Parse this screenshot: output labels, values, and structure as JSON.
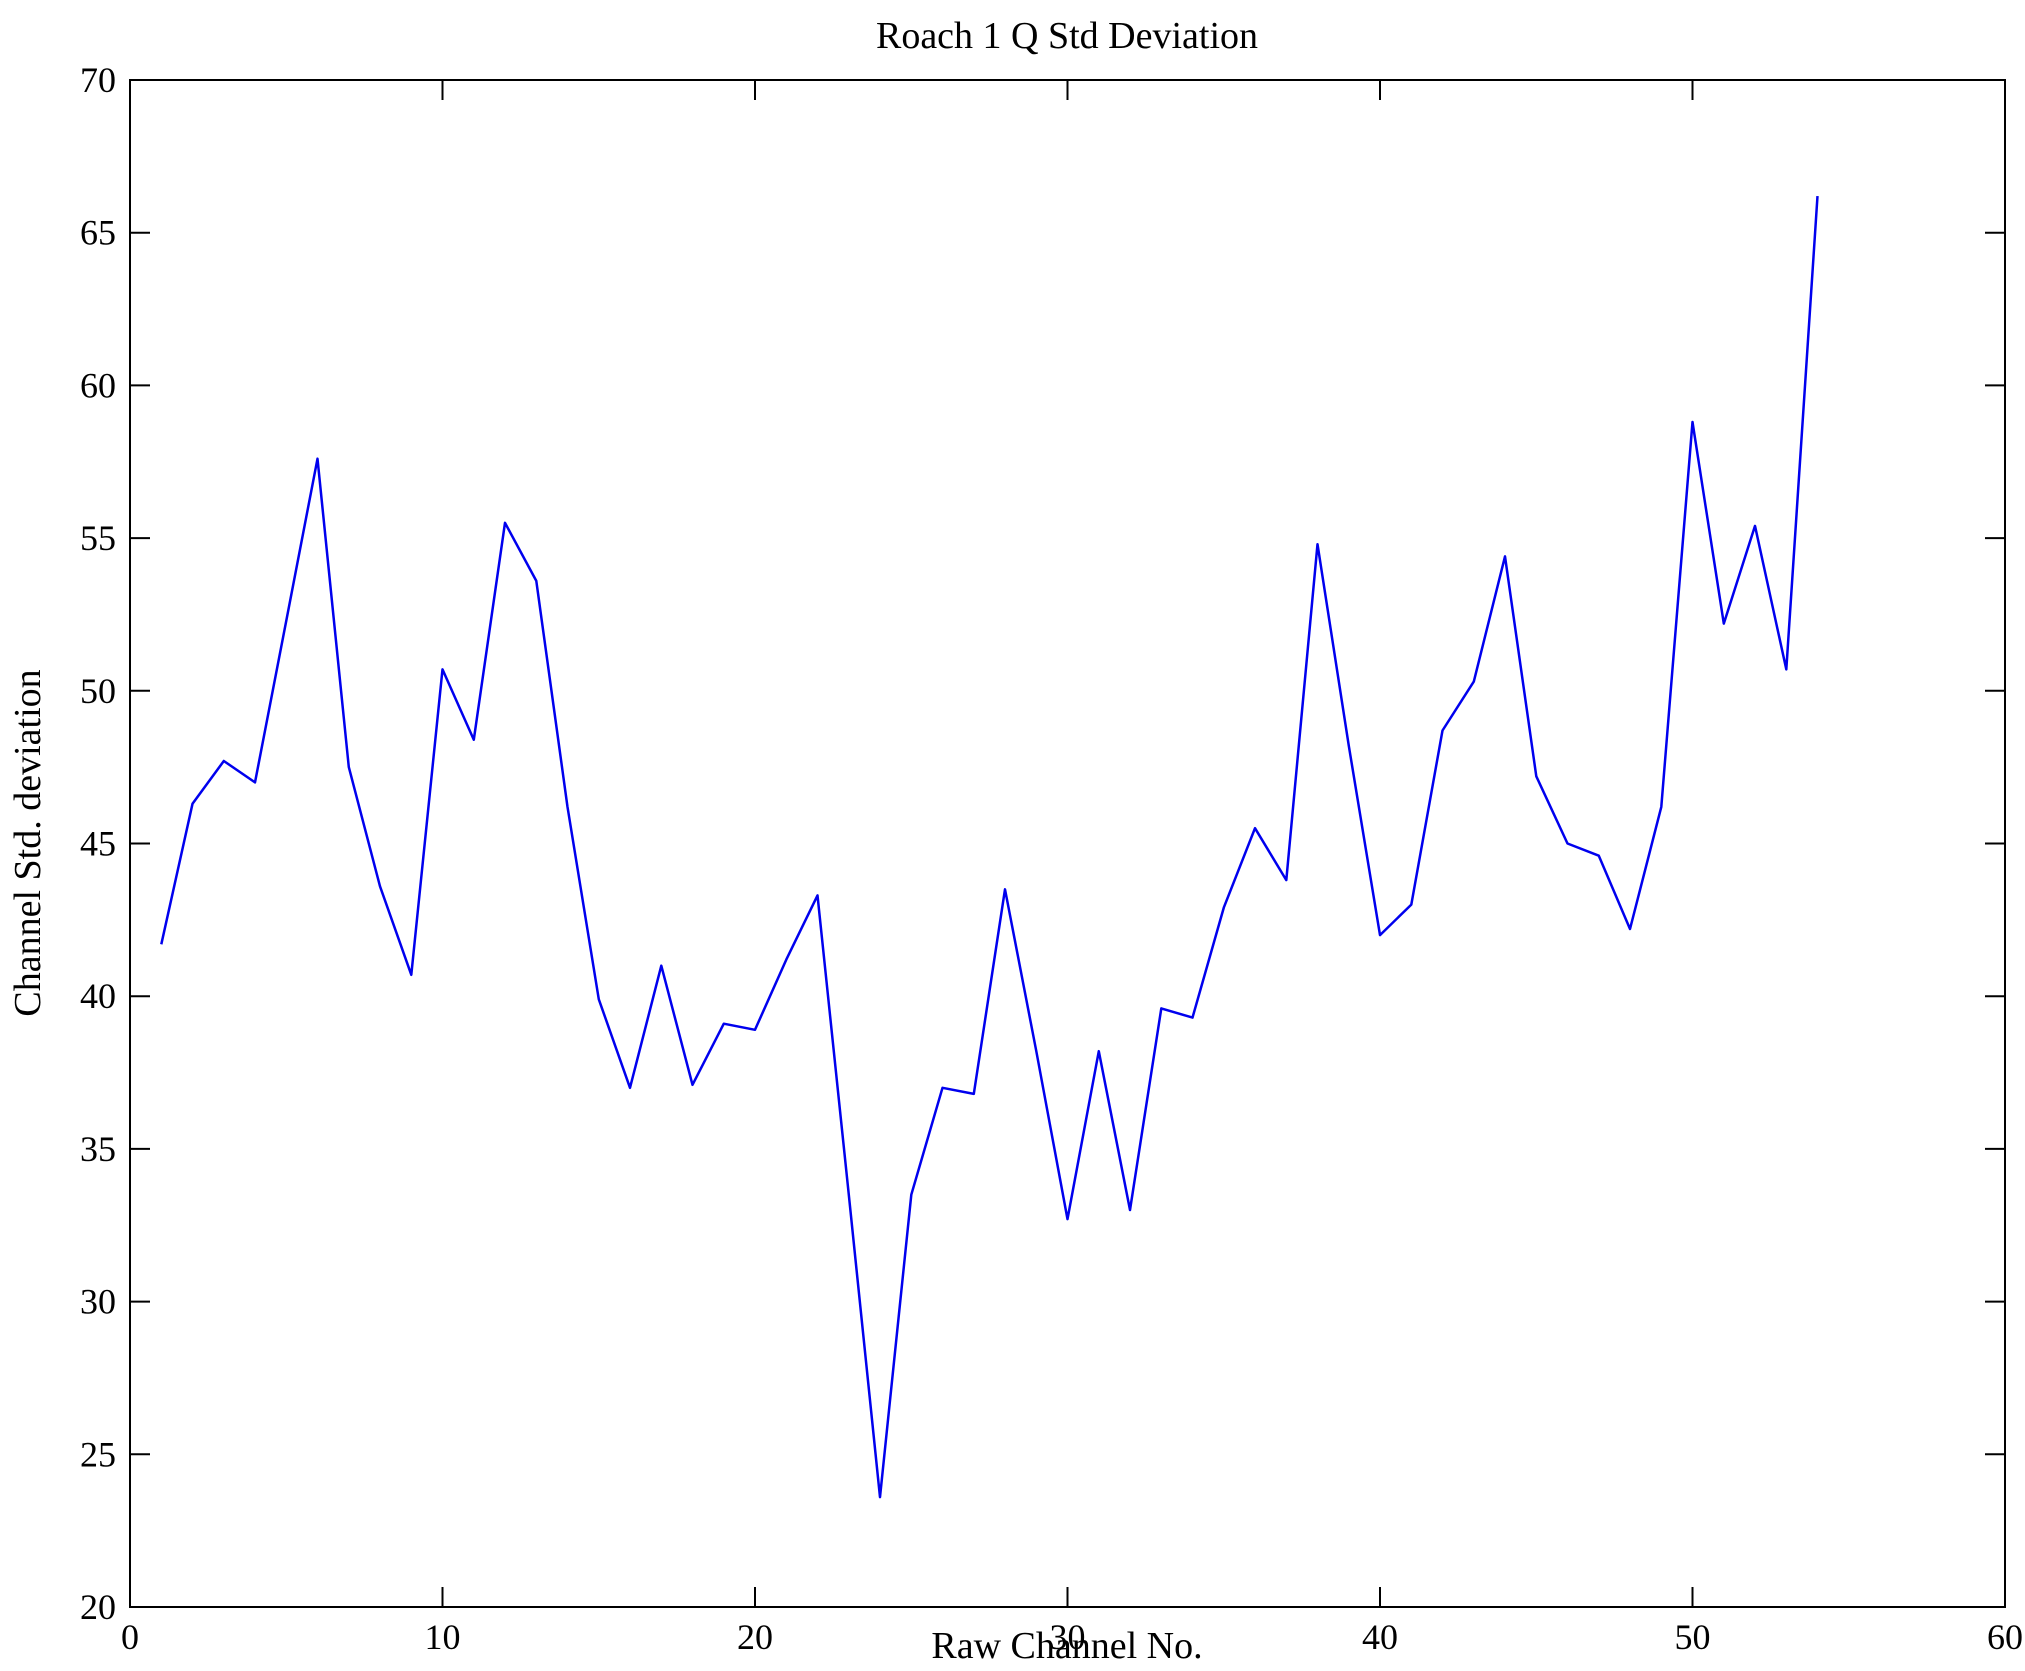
{
  "chart_data": {
    "type": "line",
    "title": "Roach 1 Q Std Deviation",
    "xlabel": "Raw Channel No.",
    "ylabel": "Channel Std. deviation",
    "xlim": [
      0,
      60
    ],
    "ylim": [
      20,
      70
    ],
    "xticks": [
      0,
      10,
      20,
      30,
      40,
      50,
      60
    ],
    "yticks": [
      20,
      25,
      30,
      35,
      40,
      45,
      50,
      55,
      60,
      65,
      70
    ],
    "grid": false,
    "legend": null,
    "line_color": "#0000ee",
    "axis_color": "#000000",
    "series": [
      {
        "name": "channel-std-deviation",
        "x": [
          1,
          2,
          3,
          4,
          5,
          6,
          7,
          8,
          9,
          10,
          11,
          12,
          13,
          14,
          15,
          16,
          17,
          18,
          19,
          20,
          21,
          22,
          23,
          24,
          25,
          26,
          27,
          28,
          29,
          30,
          31,
          32,
          33,
          34,
          35,
          36,
          37,
          38,
          39,
          40,
          41,
          42,
          43,
          44,
          45,
          46,
          47,
          48,
          49,
          50,
          51,
          52,
          53,
          54
        ],
        "y": [
          41.7,
          46.3,
          47.7,
          47.0,
          52.3,
          57.6,
          47.5,
          43.6,
          40.7,
          50.7,
          48.4,
          55.5,
          53.6,
          46.2,
          39.9,
          37.0,
          41.0,
          37.1,
          39.1,
          38.9,
          41.2,
          43.3,
          33.5,
          23.6,
          33.5,
          37.0,
          36.8,
          43.5,
          38.2,
          32.7,
          38.2,
          33.0,
          39.6,
          39.3,
          42.9,
          45.5,
          43.8,
          54.8,
          48.2,
          42.0,
          43.0,
          48.7,
          50.3,
          54.4,
          47.2,
          45.0,
          44.6,
          42.2,
          46.2,
          58.8,
          52.2,
          55.4,
          50.7,
          66.2
        ]
      }
    ]
  }
}
